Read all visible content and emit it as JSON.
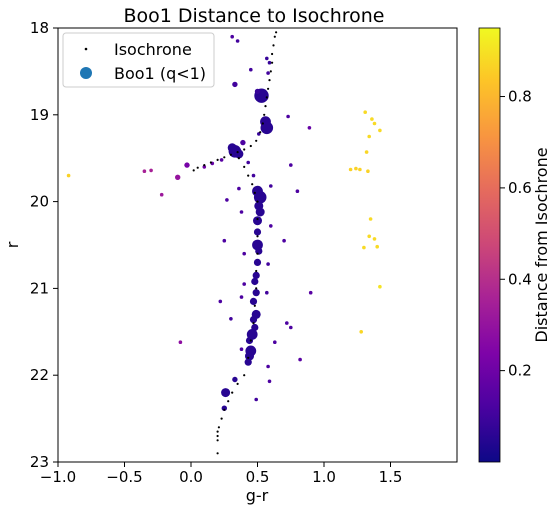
{
  "chart_data": {
    "type": "scatter",
    "title": "Boo1 Distance to Isochrone",
    "xlabel": "g-r",
    "ylabel": "r",
    "xlim": [
      -1.0,
      2.0
    ],
    "ylim": [
      23.0,
      18.0
    ],
    "y_inverted": true,
    "xticks": [
      "−1.0",
      "−0.5",
      "0.0",
      "0.5",
      "1.0",
      "1.5"
    ],
    "xtick_values": [
      -1.0,
      -0.5,
      0.0,
      0.5,
      1.0,
      1.5
    ],
    "yticks": [
      "18",
      "19",
      "20",
      "21",
      "22",
      "23"
    ],
    "ytick_values": [
      18,
      19,
      20,
      21,
      22,
      23
    ],
    "legend": {
      "position": "top-left",
      "entries": [
        {
          "label": "Isochrone",
          "marker": "small-black-dot"
        },
        {
          "label": "Boo1 (q<1)",
          "marker": "circle",
          "color": "#1f77b4"
        }
      ]
    },
    "colorbar": {
      "label": "Distance from Isochrone",
      "colormap": "plasma",
      "range": [
        0.0,
        0.95
      ],
      "ticks": [
        "0.2",
        "0.4",
        "0.6",
        "0.8"
      ],
      "tick_values": [
        0.2,
        0.4,
        0.6,
        0.8
      ]
    },
    "series": [
      {
        "name": "Isochrone",
        "color": "#000000",
        "points": [
          [
            0.64,
            18.05
          ],
          [
            0.63,
            18.1
          ],
          [
            0.62,
            18.2
          ],
          [
            0.61,
            18.3
          ],
          [
            0.61,
            18.4
          ],
          [
            0.6,
            18.5
          ],
          [
            0.59,
            18.6
          ],
          [
            0.58,
            18.7
          ],
          [
            0.57,
            18.8
          ],
          [
            0.56,
            18.9
          ],
          [
            0.55,
            19.0
          ],
          [
            0.54,
            19.1
          ],
          [
            0.52,
            19.2
          ],
          [
            0.49,
            19.3
          ],
          [
            0.45,
            19.36
          ],
          [
            0.4,
            19.4
          ],
          [
            0.35,
            19.43
          ],
          [
            0.3,
            19.46
          ],
          [
            0.25,
            19.49
          ],
          [
            0.2,
            19.52
          ],
          [
            0.15,
            19.55
          ],
          [
            0.1,
            19.58
          ],
          [
            0.05,
            19.61
          ],
          [
            0.02,
            19.64
          ],
          [
            0.36,
            19.5
          ],
          [
            0.4,
            19.6
          ],
          [
            0.43,
            19.7
          ],
          [
            0.46,
            19.8
          ],
          [
            0.48,
            19.9
          ],
          [
            0.5,
            20.0
          ],
          [
            0.5,
            20.2
          ],
          [
            0.5,
            20.4
          ],
          [
            0.5,
            20.6
          ],
          [
            0.49,
            20.8
          ],
          [
            0.49,
            21.0
          ],
          [
            0.48,
            21.2
          ],
          [
            0.47,
            21.4
          ],
          [
            0.45,
            21.6
          ],
          [
            0.43,
            21.8
          ],
          [
            0.4,
            22.0
          ],
          [
            0.35,
            22.1
          ],
          [
            0.31,
            22.2
          ],
          [
            0.28,
            22.3
          ],
          [
            0.25,
            22.4
          ],
          [
            0.23,
            22.5
          ],
          [
            0.21,
            22.6
          ],
          [
            0.2,
            22.65
          ],
          [
            0.2,
            22.7
          ],
          [
            0.2,
            22.75
          ],
          [
            0.2,
            22.9
          ]
        ]
      },
      {
        "name": "Boo1 (q<1)",
        "points": [
          [
            0.53,
            18.78,
            0.05,
            8
          ],
          [
            0.56,
            19.08,
            0.05,
            6
          ],
          [
            0.57,
            19.15,
            0.05,
            7
          ],
          [
            0.33,
            19.42,
            0.05,
            7
          ],
          [
            0.31,
            19.38,
            0.05,
            5
          ],
          [
            0.36,
            19.45,
            0.05,
            5
          ],
          [
            0.52,
            19.95,
            0.05,
            7
          ],
          [
            0.5,
            19.88,
            0.05,
            6
          ],
          [
            0.51,
            20.05,
            0.05,
            5
          ],
          [
            0.52,
            20.12,
            0.05,
            5
          ],
          [
            0.5,
            20.22,
            0.05,
            5
          ],
          [
            0.5,
            20.35,
            0.05,
            4
          ],
          [
            0.5,
            20.5,
            0.05,
            6
          ],
          [
            0.51,
            20.57,
            0.05,
            4
          ],
          [
            0.5,
            20.7,
            0.05,
            4
          ],
          [
            0.49,
            20.85,
            0.05,
            4
          ],
          [
            0.48,
            20.92,
            0.05,
            4
          ],
          [
            0.49,
            21.05,
            0.05,
            4
          ],
          [
            0.47,
            21.15,
            0.05,
            4
          ],
          [
            0.49,
            21.3,
            0.05,
            5
          ],
          [
            0.47,
            21.36,
            0.05,
            4
          ],
          [
            0.48,
            21.45,
            0.05,
            4
          ],
          [
            0.46,
            21.53,
            0.05,
            6
          ],
          [
            0.44,
            21.6,
            0.05,
            4
          ],
          [
            0.45,
            21.72,
            0.05,
            6
          ],
          [
            0.44,
            21.78,
            0.05,
            5
          ],
          [
            0.43,
            21.85,
            0.05,
            4
          ],
          [
            0.33,
            22.05,
            0.05,
            3
          ],
          [
            0.26,
            22.2,
            0.05,
            5
          ],
          [
            0.25,
            22.38,
            0.05,
            3
          ],
          [
            0.5,
            18.73,
            0.08,
            3
          ],
          [
            0.33,
            18.65,
            0.1,
            3
          ],
          [
            0.51,
            19.22,
            0.08,
            2
          ],
          [
            0.39,
            19.32,
            0.12,
            3
          ],
          [
            0.23,
            19.52,
            0.15,
            2
          ],
          [
            0.16,
            19.56,
            0.18,
            2
          ],
          [
            0.1,
            19.6,
            0.2,
            2
          ],
          [
            -0.03,
            19.58,
            0.22,
            3
          ],
          [
            -0.1,
            19.72,
            0.3,
            3
          ],
          [
            -0.3,
            19.64,
            0.35,
            2
          ],
          [
            -0.35,
            19.65,
            0.35,
            2
          ],
          [
            -0.22,
            19.92,
            0.32,
            2
          ],
          [
            0.45,
            18.48,
            0.1,
            2
          ],
          [
            0.58,
            18.52,
            0.1,
            2
          ],
          [
            0.73,
            19.02,
            0.12,
            2
          ],
          [
            0.89,
            19.15,
            0.18,
            2
          ],
          [
            0.43,
            19.55,
            0.1,
            2
          ],
          [
            0.47,
            19.7,
            0.1,
            2
          ],
          [
            0.75,
            19.58,
            0.12,
            2
          ],
          [
            0.6,
            19.82,
            0.1,
            2
          ],
          [
            0.8,
            19.88,
            0.12,
            2
          ],
          [
            0.36,
            19.85,
            0.12,
            2
          ],
          [
            0.27,
            19.98,
            0.12,
            2
          ],
          [
            0.38,
            20.12,
            0.12,
            2
          ],
          [
            0.6,
            20.28,
            0.12,
            2
          ],
          [
            0.25,
            20.45,
            0.12,
            2
          ],
          [
            0.7,
            20.45,
            0.12,
            2
          ],
          [
            0.4,
            20.6,
            0.12,
            2
          ],
          [
            0.58,
            20.72,
            0.1,
            2
          ],
          [
            0.4,
            20.95,
            0.12,
            2
          ],
          [
            0.57,
            21.05,
            0.1,
            2
          ],
          [
            0.9,
            21.05,
            0.15,
            2
          ],
          [
            0.38,
            21.1,
            0.12,
            2
          ],
          [
            0.72,
            21.4,
            0.12,
            2
          ],
          [
            0.75,
            21.45,
            0.12,
            2
          ],
          [
            0.63,
            21.62,
            0.12,
            2
          ],
          [
            0.38,
            21.7,
            0.12,
            2
          ],
          [
            0.82,
            21.82,
            0.15,
            2
          ],
          [
            0.58,
            21.9,
            0.12,
            2
          ],
          [
            0.59,
            22.07,
            0.12,
            2
          ],
          [
            0.49,
            22.28,
            0.1,
            2
          ],
          [
            -0.08,
            21.62,
            0.28,
            2
          ],
          [
            0.31,
            18.1,
            0.12,
            2
          ],
          [
            0.35,
            18.15,
            0.1,
            2
          ],
          [
            0.57,
            18.35,
            0.08,
            2
          ],
          [
            0.59,
            18.4,
            0.08,
            2
          ],
          [
            0.22,
            21.15,
            0.12,
            2
          ],
          [
            0.3,
            21.35,
            0.1,
            2
          ],
          [
            1.31,
            18.97,
            0.88,
            2
          ],
          [
            1.36,
            19.05,
            0.88,
            2
          ],
          [
            1.38,
            19.1,
            0.88,
            2
          ],
          [
            1.42,
            19.18,
            0.88,
            2
          ],
          [
            1.34,
            19.25,
            0.88,
            2
          ],
          [
            1.2,
            19.63,
            0.86,
            2
          ],
          [
            1.24,
            19.62,
            0.86,
            2
          ],
          [
            1.27,
            19.63,
            0.86,
            2
          ],
          [
            1.33,
            19.65,
            0.86,
            2
          ],
          [
            1.32,
            19.43,
            0.87,
            2
          ],
          [
            1.35,
            20.2,
            0.88,
            2
          ],
          [
            1.34,
            20.4,
            0.88,
            2
          ],
          [
            1.38,
            20.43,
            0.88,
            2
          ],
          [
            1.3,
            20.53,
            0.88,
            2
          ],
          [
            1.4,
            20.52,
            0.88,
            2
          ],
          [
            1.42,
            20.98,
            0.9,
            2
          ],
          [
            1.28,
            21.5,
            0.87,
            2
          ],
          [
            -0.92,
            19.7,
            0.86,
            2
          ]
        ]
      }
    ]
  }
}
